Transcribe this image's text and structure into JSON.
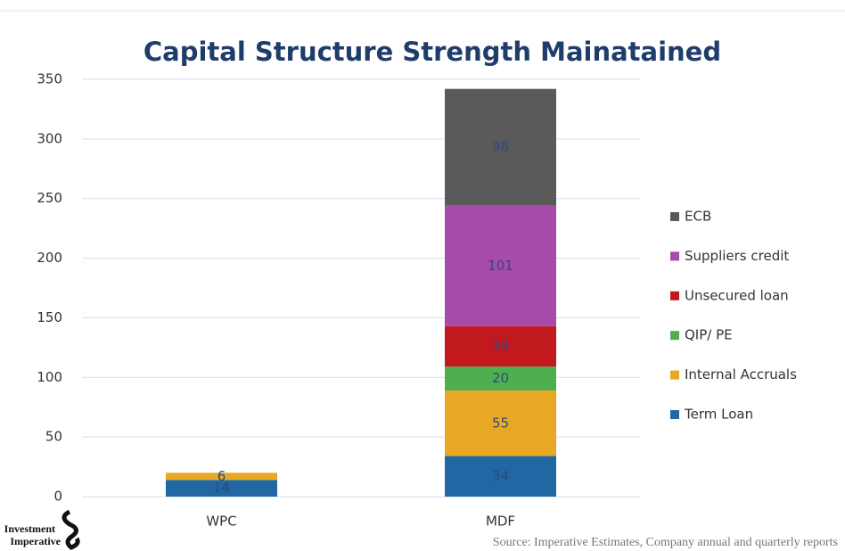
{
  "chart_data": {
    "type": "stacked_bar",
    "title": "Capital Structure Strength Mainatained",
    "categories": [
      "WPC",
      "MDF"
    ],
    "series": [
      {
        "name": "Term Loan",
        "color": "#2067a3",
        "values": [
          14,
          34
        ]
      },
      {
        "name": "Internal Accruals",
        "color": "#e9a823",
        "values": [
          6,
          55
        ]
      },
      {
        "name": "QIP/ PE",
        "color": "#4daf4f",
        "values": [
          null,
          20
        ]
      },
      {
        "name": "Unsecured loan",
        "color": "#c2191e",
        "values": [
          null,
          34
        ]
      },
      {
        "name": "Suppliers credit",
        "color": "#a84aaa",
        "values": [
          null,
          101
        ]
      },
      {
        "name": "ECB",
        "color": "#5a5a5a",
        "values": [
          null,
          98
        ]
      }
    ],
    "ylim": [
      0,
      350
    ],
    "yticks": [
      0,
      50,
      100,
      150,
      200,
      250,
      300,
      350
    ],
    "grid": true,
    "legend": "right",
    "logo": [
      "Investment",
      "Imperative"
    ],
    "source": "Source: Imperative Estimates, Company annual and quarterly reports"
  }
}
